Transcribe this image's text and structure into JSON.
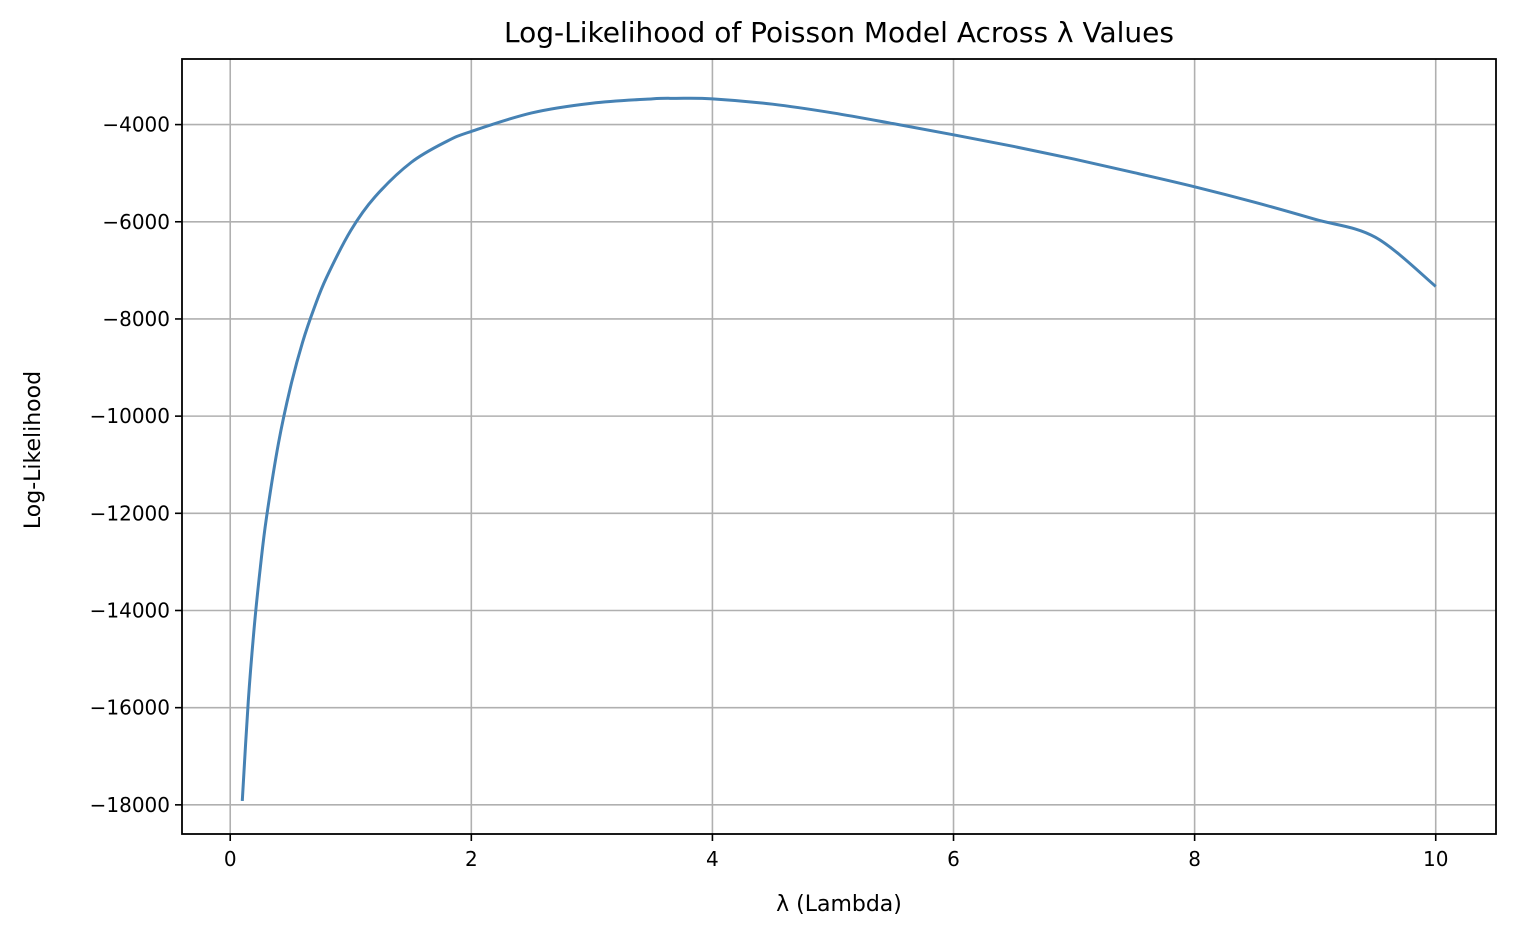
{
  "chart_data": {
    "type": "line",
    "title": "Log-Likelihood of Poisson Model Across λ Values",
    "xlabel": "λ (Lambda)",
    "ylabel": "Log-Likelihood",
    "xlim": [
      -0.4,
      10.5
    ],
    "ylim": [
      -18600,
      -2650
    ],
    "xticks": [
      0,
      2,
      4,
      6,
      8,
      10
    ],
    "xtick_labels": [
      "0",
      "2",
      "4",
      "6",
      "8",
      "10"
    ],
    "yticks": [
      -18000,
      -16000,
      -14000,
      -12000,
      -10000,
      -8000,
      -6000,
      -4000
    ],
    "ytick_labels": [
      "−18000",
      "−16000",
      "−14000",
      "−12000",
      "−10000",
      "−8000",
      "−6000",
      "−4000"
    ],
    "grid": true,
    "legend": "none",
    "series": [
      {
        "color": "#4682b4",
        "x": [
          0.1,
          0.15,
          0.2,
          0.25,
          0.3,
          0.4,
          0.5,
          0.6,
          0.7,
          0.8,
          1.0,
          1.2,
          1.5,
          1.8,
          2.0,
          2.5,
          3.0,
          3.5,
          3.7,
          4.0,
          4.5,
          5.0,
          5.5,
          6.0,
          6.5,
          7.0,
          7.5,
          8.0,
          8.5,
          9.0,
          9.5,
          10.0
        ],
        "y": [
          -17920,
          -15860,
          -14320,
          -13110,
          -12100,
          -10560,
          -9400,
          -8480,
          -7750,
          -7140,
          -6180,
          -5490,
          -4780,
          -4340,
          -4140,
          -3760,
          -3560,
          -3470,
          -3460,
          -3470,
          -3580,
          -3760,
          -3980,
          -4210,
          -4450,
          -4710,
          -4990,
          -5280,
          -5600,
          -5950,
          -6320,
          -7330
        ]
      }
    ]
  }
}
